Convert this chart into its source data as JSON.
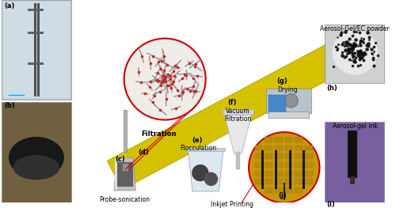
{
  "figure_width": 5.0,
  "figure_height": 2.63,
  "dpi": 100,
  "bg_color": "#ffffff",
  "labels": {
    "a": "(a)",
    "b": "(b)",
    "c": "(c)",
    "d": "(d)",
    "e": "(e)",
    "f": "(f)",
    "g": "(g)",
    "h": "(h)",
    "i": "(i)",
    "j": "(j)"
  },
  "step_labels": {
    "probe_sonication": "Probe-sonication",
    "filtration": "Filtration",
    "flocculation": "Flocculation",
    "vacuum_filtration": "Vacuum\nFiltration",
    "drying": "Drying",
    "aerosol_gel_ec": "Aerosol-Gel/EC powder",
    "aerosol_gel_ink": "Aerosol-gel ink",
    "inkjet_printing": "Inkjet Printing"
  },
  "arrow_color": "#d4c200",
  "arrow_edge_color": "#b8a800",
  "red_circle_color": "#cc0000",
  "label_fontsize": 6,
  "step_fontsize": 5.5,
  "panel_border_color": "#888888"
}
